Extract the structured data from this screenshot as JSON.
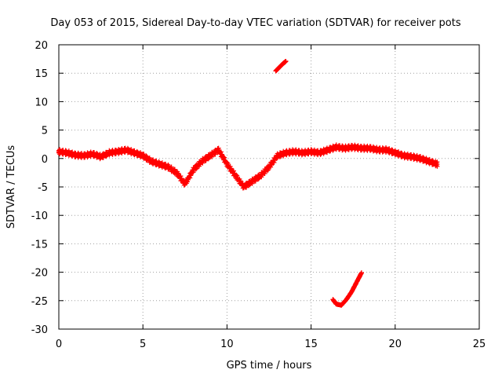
{
  "chart_data": {
    "type": "scatter",
    "title": "Day 053 of 2015, Sidereal Day-to-day VTEC variation (SDTVAR) for receiver pots",
    "xlabel": "GPS time / hours",
    "ylabel": "SDTVAR / TECUs",
    "xlim": [
      0,
      25
    ],
    "ylim": [
      -30,
      20
    ],
    "xticks": [
      0,
      5,
      10,
      15,
      20,
      25
    ],
    "yticks": [
      -30,
      -25,
      -20,
      -15,
      -10,
      -5,
      0,
      5,
      10,
      15,
      20
    ],
    "grid": true,
    "marker": "plus",
    "series": [
      {
        "name": "SDTVAR",
        "color": "#ff0000",
        "points": [
          [
            0.0,
            1.2
          ],
          [
            0.5,
            1.0
          ],
          [
            1.0,
            0.6
          ],
          [
            1.5,
            0.5
          ],
          [
            2.0,
            0.8
          ],
          [
            2.5,
            0.3
          ],
          [
            3.0,
            1.0
          ],
          [
            3.5,
            1.2
          ],
          [
            4.0,
            1.5
          ],
          [
            4.5,
            1.0
          ],
          [
            5.0,
            0.5
          ],
          [
            5.5,
            -0.5
          ],
          [
            6.0,
            -1.0
          ],
          [
            6.5,
            -1.5
          ],
          [
            7.0,
            -2.5
          ],
          [
            7.5,
            -4.5
          ],
          [
            8.0,
            -2.0
          ],
          [
            8.5,
            -0.5
          ],
          [
            9.0,
            0.5
          ],
          [
            9.5,
            1.5
          ],
          [
            10.0,
            -1.0
          ],
          [
            10.5,
            -3.0
          ],
          [
            11.0,
            -5.0
          ],
          [
            11.5,
            -4.0
          ],
          [
            12.0,
            -3.0
          ],
          [
            12.5,
            -1.5
          ],
          [
            13.0,
            0.5
          ],
          [
            13.5,
            1.0
          ],
          [
            14.0,
            1.2
          ],
          [
            14.5,
            1.0
          ],
          [
            15.0,
            1.2
          ],
          [
            15.5,
            1.0
          ],
          [
            16.0,
            1.5
          ],
          [
            16.5,
            2.0
          ],
          [
            17.0,
            1.8
          ],
          [
            17.5,
            2.0
          ],
          [
            18.0,
            1.8
          ],
          [
            18.5,
            1.8
          ],
          [
            19.0,
            1.5
          ],
          [
            19.5,
            1.5
          ],
          [
            20.0,
            1.0
          ],
          [
            20.5,
            0.5
          ],
          [
            21.0,
            0.3
          ],
          [
            21.5,
            0.0
          ],
          [
            22.0,
            -0.5
          ],
          [
            22.5,
            -1.0
          ]
        ]
      },
      {
        "name": "SDTVAR (upper arc)",
        "color": "#ff0000",
        "points": [
          [
            12.9,
            15.4
          ],
          [
            13.1,
            16.0
          ],
          [
            13.3,
            16.6
          ],
          [
            13.5,
            17.1
          ]
        ]
      },
      {
        "name": "SDTVAR (lower arc)",
        "color": "#ff0000",
        "points": [
          [
            16.3,
            -24.8
          ],
          [
            16.5,
            -25.6
          ],
          [
            16.8,
            -25.8
          ],
          [
            17.1,
            -24.8
          ],
          [
            17.4,
            -23.5
          ],
          [
            17.7,
            -21.8
          ],
          [
            18.0,
            -20.1
          ]
        ]
      }
    ]
  }
}
